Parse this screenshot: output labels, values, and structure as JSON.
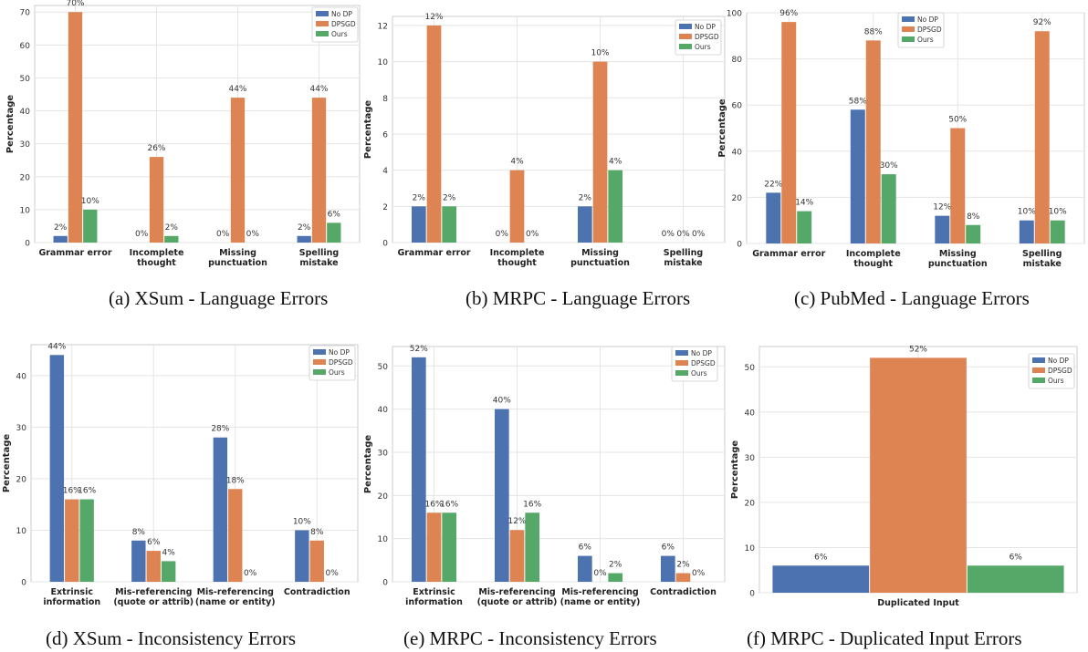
{
  "colors": {
    "no_dp": "#4c72b0",
    "dpsgd": "#dd8452",
    "ours": "#55a868",
    "grid": "#e5e5e5",
    "axes": "#cccccc"
  },
  "chart_data": [
    {
      "type": "bar",
      "caption": "(a) XSum - Language Errors",
      "ylabel": "Percentage",
      "ylim": [
        0,
        72
      ],
      "yticks": [
        0,
        10,
        20,
        30,
        40,
        50,
        60,
        70
      ],
      "categories": [
        "Grammar error",
        "Incomplete\nthought",
        "Missing\npunctuation",
        "Spelling\nmistake"
      ],
      "series": [
        {
          "name": "No DP",
          "values": [
            2,
            0,
            0,
            2
          ],
          "labels": [
            "2%",
            "0%",
            "0%",
            "2%"
          ]
        },
        {
          "name": "DPSGD",
          "values": [
            70,
            26,
            44,
            44
          ],
          "labels": [
            "70%",
            "26%",
            "44%",
            "44%"
          ]
        },
        {
          "name": "Ours",
          "values": [
            10,
            2,
            0,
            6
          ],
          "labels": [
            "10%",
            "2%",
            "0%",
            "6%"
          ]
        }
      ],
      "legend": "top-right"
    },
    {
      "type": "bar",
      "caption": "(b) MRPC - Language Errors",
      "ylabel": "Percentage",
      "ylim": [
        0,
        12.5
      ],
      "yticks": [
        0,
        2,
        4,
        6,
        8,
        10,
        12
      ],
      "categories": [
        "Grammar error",
        "Incomplete\nthought",
        "Missing\npunctuation",
        "Spelling\nmistake"
      ],
      "series": [
        {
          "name": "No DP",
          "values": [
            2,
            0,
            2,
            0
          ],
          "labels": [
            "2%",
            "0%",
            "2%",
            "0%"
          ]
        },
        {
          "name": "DPSGD",
          "values": [
            12,
            4,
            10,
            0
          ],
          "labels": [
            "12%",
            "4%",
            "10%",
            "0%"
          ]
        },
        {
          "name": "Ours",
          "values": [
            2,
            0,
            4,
            0
          ],
          "labels": [
            "2%",
            "0%",
            "4%",
            "0%"
          ]
        }
      ],
      "legend": "top-right"
    },
    {
      "type": "bar",
      "caption": "(c) PubMed - Language Errors",
      "ylabel": "Percentage",
      "ylim": [
        0,
        100
      ],
      "yticks": [
        0,
        20,
        40,
        60,
        80,
        100
      ],
      "categories": [
        "Grammar error",
        "Incomplete\nthought",
        "Missing\npunctuation",
        "Spelling\nmistake"
      ],
      "series": [
        {
          "name": "No DP",
          "values": [
            22,
            58,
            12,
            10
          ],
          "labels": [
            "22%",
            "58%",
            "12%",
            "10%"
          ]
        },
        {
          "name": "DPSGD",
          "values": [
            96,
            88,
            50,
            92
          ],
          "labels": [
            "96%",
            "88%",
            "50%",
            "92%"
          ]
        },
        {
          "name": "Ours",
          "values": [
            14,
            30,
            8,
            10
          ],
          "labels": [
            "14%",
            "30%",
            "8%",
            "10%"
          ]
        }
      ],
      "legend": "top-center"
    },
    {
      "type": "bar",
      "caption": "(d) XSum - Inconsistency Errors",
      "ylabel": "Percentage",
      "ylim": [
        0,
        46
      ],
      "yticks": [
        0,
        10,
        20,
        30,
        40
      ],
      "categories": [
        "Extrinsic\ninformation",
        "Mis-referencing\n(quote or attrib)",
        "Mis-referencing\n(name or entity)",
        "Contradiction"
      ],
      "series": [
        {
          "name": "No DP",
          "values": [
            44,
            8,
            28,
            10
          ],
          "labels": [
            "44%",
            "8%",
            "28%",
            "10%"
          ]
        },
        {
          "name": "DPSGD",
          "values": [
            16,
            6,
            18,
            8
          ],
          "labels": [
            "16%",
            "6%",
            "18%",
            "8%"
          ]
        },
        {
          "name": "Ours",
          "values": [
            16,
            4,
            0,
            0
          ],
          "labels": [
            "16%",
            "4%",
            "0%",
            "0%"
          ]
        }
      ],
      "legend": "top-right"
    },
    {
      "type": "bar",
      "caption": "(e) MRPC - Inconsistency Errors",
      "ylabel": "Percentage",
      "ylim": [
        0,
        54.5
      ],
      "yticks": [
        0,
        10,
        20,
        30,
        40,
        50
      ],
      "categories": [
        "Extrinsic\ninformation",
        "Mis-referencing\n(quote or attrib)",
        "Mis-referencing\n(name or entity)",
        "Contradiction"
      ],
      "series": [
        {
          "name": "No DP",
          "values": [
            52,
            40,
            6,
            6
          ],
          "labels": [
            "52%",
            "40%",
            "6%",
            "6%"
          ]
        },
        {
          "name": "DPSGD",
          "values": [
            16,
            12,
            0,
            2
          ],
          "labels": [
            "16%",
            "12%",
            "0%",
            "2%"
          ]
        },
        {
          "name": "Ours",
          "values": [
            16,
            16,
            2,
            0
          ],
          "labels": [
            "16%",
            "16%",
            "2%",
            "0%"
          ]
        }
      ],
      "legend": "top-right"
    },
    {
      "type": "bar",
      "caption": "(f) MRPC - Duplicated Input Errors",
      "ylabel": "Percentage",
      "ylim": [
        0,
        54.5
      ],
      "yticks": [
        0,
        10,
        20,
        30,
        40,
        50
      ],
      "categories": [
        "Duplicated Input"
      ],
      "series": [
        {
          "name": "No DP",
          "values": [
            6
          ],
          "labels": [
            "6%"
          ]
        },
        {
          "name": "DPSGD",
          "values": [
            52
          ],
          "labels": [
            "52%"
          ]
        },
        {
          "name": "Ours",
          "values": [
            6
          ],
          "labels": [
            "6%"
          ]
        }
      ],
      "legend": "top-right"
    }
  ]
}
